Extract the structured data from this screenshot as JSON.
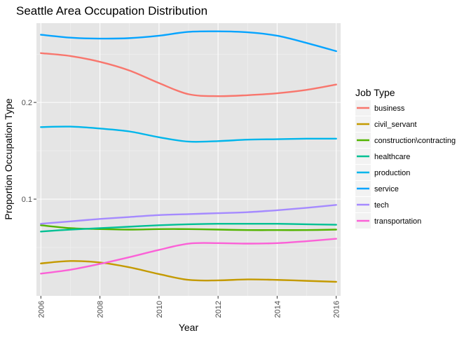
{
  "chart_data": {
    "type": "line",
    "title": "Seattle Area Occupation Distribution",
    "xlabel": "Year",
    "ylabel": "Proportion Occupation Type",
    "xlim": [
      2005.85,
      2016.15
    ],
    "ylim": [
      0.0,
      0.282
    ],
    "x_ticks": [
      2006,
      2008,
      2010,
      2012,
      2014,
      2016
    ],
    "x_tick_labels": [
      "2006",
      "2008",
      "2010",
      "2012",
      "2014",
      "2016"
    ],
    "y_ticks": [
      0.1,
      0.2
    ],
    "y_tick_labels": [
      "0.1",
      "0.2"
    ],
    "grid": true,
    "background": "#e5e5e5",
    "legend": {
      "title": "Job Type",
      "placement": "right"
    },
    "x": [
      2006,
      2007,
      2008,
      2009,
      2010,
      2011,
      2012,
      2013,
      2014,
      2015,
      2016
    ],
    "series": [
      {
        "name": "business",
        "color": "#f8766d",
        "values": [
          0.251,
          0.248,
          0.242,
          0.233,
          0.22,
          0.2085,
          0.2065,
          0.2075,
          0.2095,
          0.213,
          0.2185
        ]
      },
      {
        "name": "civil_servant",
        "color": "#c49a00",
        "values": [
          0.0335,
          0.036,
          0.0345,
          0.0295,
          0.0225,
          0.0165,
          0.016,
          0.017,
          0.0165,
          0.0155,
          0.0145
        ]
      },
      {
        "name": "construction\\contracting",
        "color": "#53b400",
        "values": [
          0.073,
          0.07,
          0.069,
          0.0685,
          0.069,
          0.069,
          0.0685,
          0.068,
          0.068,
          0.068,
          0.0685
        ]
      },
      {
        "name": "healthcare",
        "color": "#00c094",
        "values": [
          0.0665,
          0.0685,
          0.07,
          0.0715,
          0.073,
          0.074,
          0.0745,
          0.0745,
          0.0745,
          0.074,
          0.0735
        ]
      },
      {
        "name": "production",
        "color": "#00b6eb",
        "values": [
          0.1745,
          0.175,
          0.173,
          0.17,
          0.164,
          0.1595,
          0.16,
          0.1615,
          0.162,
          0.1625,
          0.1625
        ]
      },
      {
        "name": "service",
        "color": "#06a4ff",
        "values": [
          0.27,
          0.267,
          0.266,
          0.2665,
          0.269,
          0.273,
          0.2735,
          0.2725,
          0.269,
          0.2615,
          0.253
        ]
      },
      {
        "name": "tech",
        "color": "#a58aff",
        "values": [
          0.0745,
          0.077,
          0.0795,
          0.0815,
          0.0835,
          0.0845,
          0.0855,
          0.0865,
          0.0885,
          0.091,
          0.094
        ]
      },
      {
        "name": "transportation",
        "color": "#fb61d7",
        "values": [
          0.023,
          0.027,
          0.033,
          0.04,
          0.0475,
          0.054,
          0.0545,
          0.054,
          0.0545,
          0.0565,
          0.059
        ]
      }
    ]
  }
}
